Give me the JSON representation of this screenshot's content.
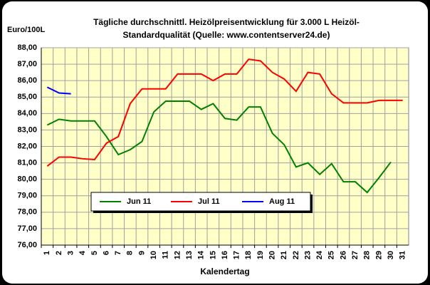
{
  "chart_data": {
    "type": "line",
    "title": [
      "Tägliche durchschnittl. Heizölpreisentwicklung für 3.000 L Heizöl-",
      "Standardqualität (Quelle: www.contentserver24.de)"
    ],
    "y_label": "Euro/100L",
    "x_label": "Kalendertag",
    "categories": [
      "1",
      "2",
      "3",
      "4",
      "5",
      "6",
      "7",
      "8",
      "9",
      "10",
      "11",
      "12",
      "13",
      "14",
      "15",
      "16",
      "17",
      "18",
      "19",
      "20",
      "21",
      "22",
      "23",
      "24",
      "25",
      "26",
      "27",
      "28",
      "29",
      "30",
      "31"
    ],
    "series": [
      {
        "name": "Jun 11",
        "color": "#008000",
        "values": [
          83.3,
          83.65,
          83.55,
          83.55,
          83.55,
          82.6,
          81.5,
          81.8,
          82.3,
          84.1,
          84.75,
          84.75,
          84.75,
          84.25,
          84.6,
          83.7,
          83.6,
          84.4,
          84.4,
          82.8,
          82.1,
          80.75,
          81.0,
          80.3,
          80.95,
          79.85,
          79.85,
          79.2,
          80.1,
          81.05,
          null
        ]
      },
      {
        "name": "Jul 11",
        "color": "#ff0000",
        "values": [
          80.8,
          81.35,
          81.35,
          81.25,
          81.2,
          82.2,
          82.6,
          84.6,
          85.5,
          85.5,
          85.5,
          86.4,
          86.4,
          86.4,
          86.0,
          86.4,
          86.4,
          87.3,
          87.2,
          86.5,
          86.1,
          85.35,
          86.5,
          86.4,
          85.2,
          84.65,
          84.65,
          84.65,
          84.8,
          84.8,
          84.8
        ]
      },
      {
        "name": "Aug 11",
        "color": "#0000ff",
        "values": [
          85.6,
          85.25,
          85.2,
          null,
          null,
          null,
          null,
          null,
          null,
          null,
          null,
          null,
          null,
          null,
          null,
          null,
          null,
          null,
          null,
          null,
          null,
          null,
          null,
          null,
          null,
          null,
          null,
          null,
          null,
          null,
          null
        ]
      }
    ],
    "ylim": [
      76,
      88
    ],
    "yticks": [
      {
        "value": 76,
        "label": "76,00"
      },
      {
        "value": 77,
        "label": "77,00"
      },
      {
        "value": 78,
        "label": "78,00"
      },
      {
        "value": 79,
        "label": "79,00"
      },
      {
        "value": 80,
        "label": "80,00"
      },
      {
        "value": 81,
        "label": "81,00"
      },
      {
        "value": 82,
        "label": "82,00"
      },
      {
        "value": 83,
        "label": "83,00"
      },
      {
        "value": 84,
        "label": "84,00"
      },
      {
        "value": 85,
        "label": "85,00"
      },
      {
        "value": 86,
        "label": "86,00"
      },
      {
        "value": 87,
        "label": "87,00"
      },
      {
        "value": 88,
        "label": "88,00"
      }
    ],
    "grid": true
  }
}
